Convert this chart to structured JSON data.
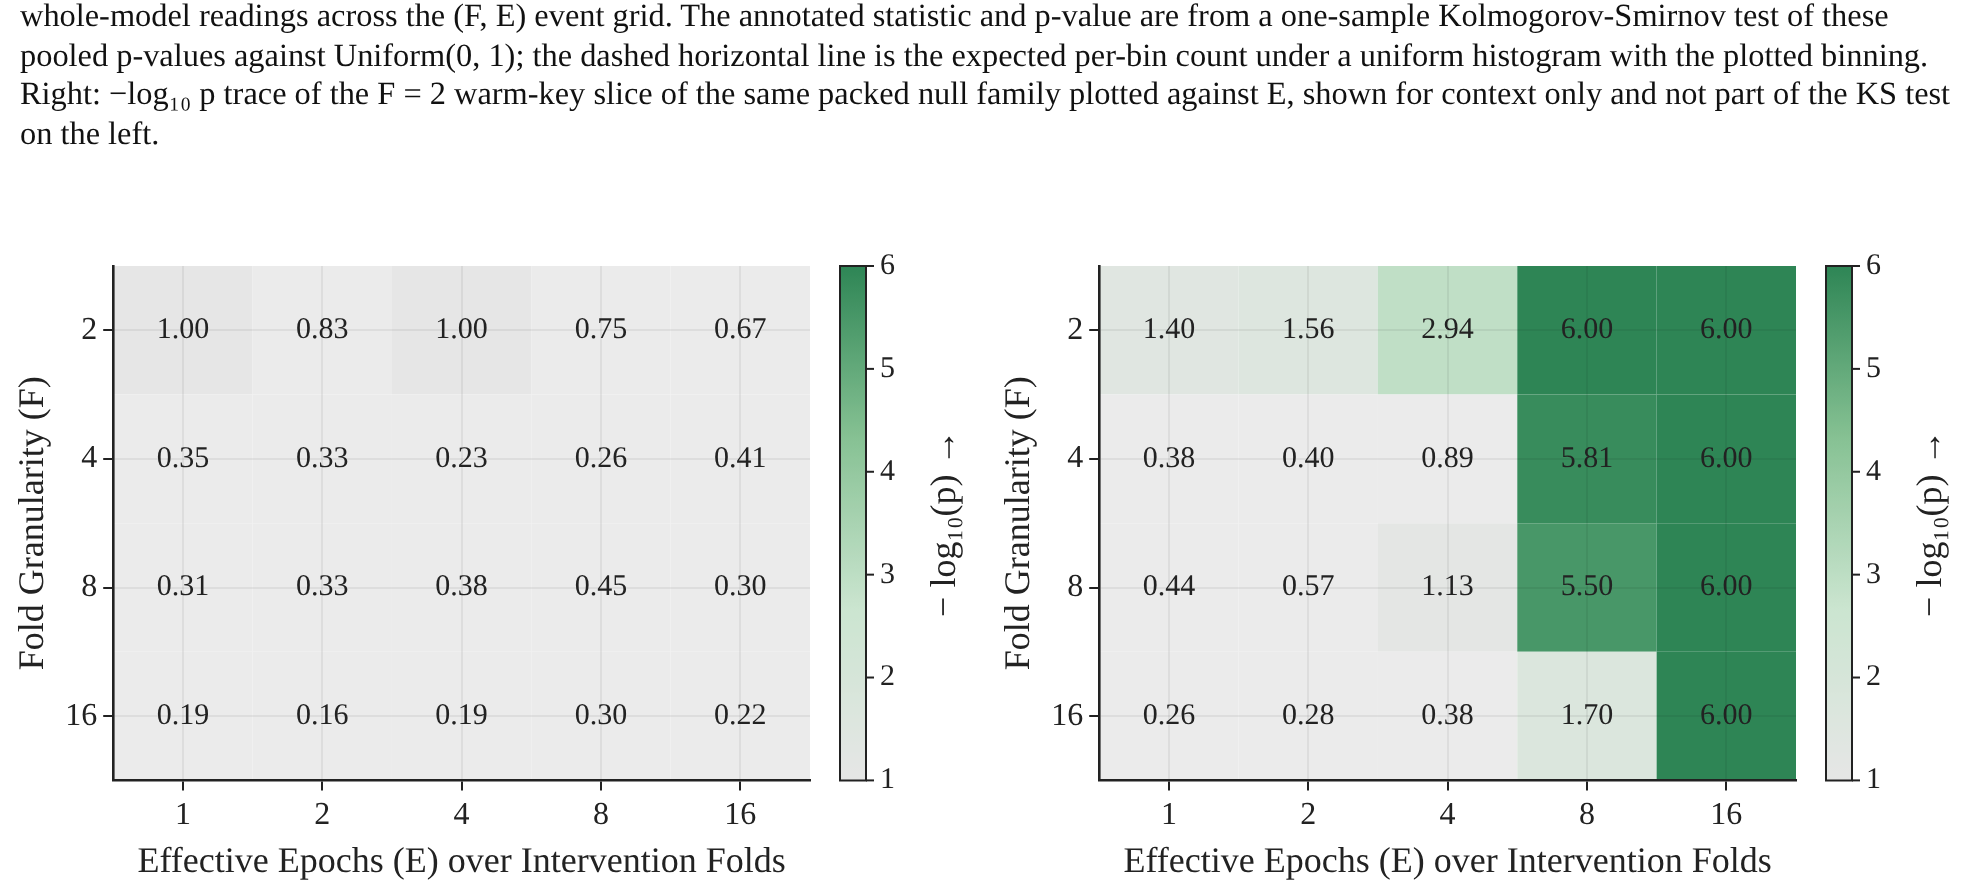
{
  "chart_data": [
    {
      "type": "heatmap",
      "annotations": [
        "whole-model readings across the (F, E) event grid. The annotated statistic and p-value are from a one-sample Kolmogorov-Smirnov test of these pooled p-values against Uniform(0, 1); the dashed horizontal line is the expected per-bin count under a uniform histogram with the plotted binning. Right: −log₁₀ p trace of the F = 2 warm-key slice of the same packed null family plotted against E, shown for context only and not part of the KS test on the left."
      ],
      "xlabel": "Effective Epochs (E) over Intervention Folds",
      "ylabel": "Fold Granularity (F)",
      "clabel": "− log₁₀(p) →",
      "categories": [
        "1",
        "2",
        "4",
        "8",
        "16"
      ],
      "y_categories": [
        "2",
        "4",
        "8",
        "16"
      ],
      "cells": [
        [
          1.0,
          0.83,
          1.0,
          0.75,
          0.67
        ],
        [
          0.35,
          0.33,
          0.23,
          0.26,
          0.41
        ],
        [
          0.31,
          0.33,
          0.38,
          0.45,
          0.3
        ],
        [
          0.19,
          0.16,
          0.19,
          0.3,
          0.22
        ]
      ],
      "cell_labels": [
        [
          "1.00",
          "0.83",
          "1.00",
          "0.75",
          "0.67"
        ],
        [
          "0.35",
          "0.33",
          "0.23",
          "0.26",
          "0.41"
        ],
        [
          "0.31",
          "0.33",
          "0.38",
          "0.45",
          "0.30"
        ],
        [
          "0.19",
          "0.16",
          "0.19",
          "0.30",
          "0.22"
        ]
      ],
      "clim": [
        1,
        6
      ],
      "cticks": [
        1,
        2,
        3,
        4,
        5,
        6
      ],
      "colors": [
        "#e6e6e6",
        "#cbe5d0",
        "#86c193",
        "#2e8555"
      ],
      "data_labels": true,
      "grid": true
    },
    {
      "type": "heatmap",
      "xlabel": "Effective Epochs (E) over Intervention Folds",
      "ylabel": "Fold Granularity (F)",
      "clabel": "− log₁₀(p) →",
      "categories": [
        "1",
        "2",
        "4",
        "8",
        "16"
      ],
      "y_categories": [
        "2",
        "4",
        "8",
        "16"
      ],
      "cells": [
        [
          1.4,
          1.56,
          2.94,
          6.0,
          6.0
        ],
        [
          0.38,
          0.4,
          0.89,
          5.81,
          6.0
        ],
        [
          0.44,
          0.57,
          1.13,
          5.5,
          6.0
        ],
        [
          0.26,
          0.28,
          0.38,
          1.7,
          6.0
        ]
      ],
      "cell_labels": [
        [
          "1.40",
          "1.56",
          "2.94",
          "6.00",
          "6.00"
        ],
        [
          "0.38",
          "0.40",
          "0.89",
          "5.81",
          "6.00"
        ],
        [
          "0.44",
          "0.57",
          "1.13",
          "5.50",
          "6.00"
        ],
        [
          "0.26",
          "0.28",
          "0.38",
          "1.70",
          "6.00"
        ]
      ],
      "clim": [
        1,
        6
      ],
      "cticks": [
        1,
        2,
        3,
        4,
        5,
        6
      ],
      "colors": [
        "#e6e6e6",
        "#cbe5d0",
        "#86c193",
        "#2e8555"
      ],
      "data_labels": true,
      "grid": true
    }
  ]
}
